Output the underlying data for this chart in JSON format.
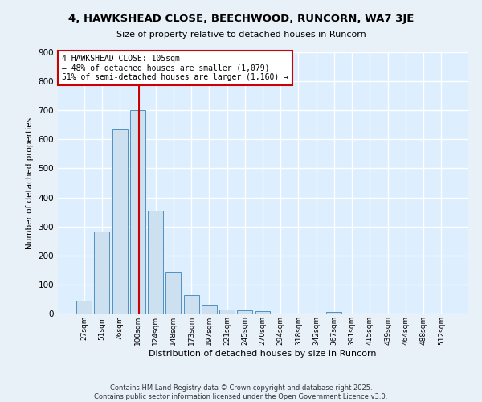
{
  "title": "4, HAWKSHEAD CLOSE, BEECHWOOD, RUNCORN, WA7 3JE",
  "subtitle": "Size of property relative to detached houses in Runcorn",
  "xlabel": "Distribution of detached houses by size in Runcorn",
  "ylabel": "Number of detached properties",
  "bar_color": "#cce0f0",
  "bar_edge_color": "#5090c0",
  "background_color": "#ddeeff",
  "fig_background_color": "#e8f0f8",
  "grid_color": "#ffffff",
  "categories": [
    "27sqm",
    "51sqm",
    "76sqm",
    "100sqm",
    "124sqm",
    "148sqm",
    "173sqm",
    "197sqm",
    "221sqm",
    "245sqm",
    "270sqm",
    "294sqm",
    "318sqm",
    "342sqm",
    "367sqm",
    "391sqm",
    "415sqm",
    "439sqm",
    "464sqm",
    "488sqm",
    "512sqm"
  ],
  "values": [
    43,
    283,
    635,
    700,
    355,
    145,
    65,
    30,
    15,
    11,
    7,
    0,
    0,
    0,
    5,
    0,
    0,
    0,
    0,
    0,
    0
  ],
  "vline_color": "#cc0000",
  "vline_x": 3.08,
  "annotation_text": "4 HAWKSHEAD CLOSE: 105sqm\n← 48% of detached houses are smaller (1,079)\n51% of semi-detached houses are larger (1,160) →",
  "annotation_box_color": "#ffffff",
  "annotation_box_edge": "#cc0000",
  "ylim": [
    0,
    900
  ],
  "yticks": [
    0,
    100,
    200,
    300,
    400,
    500,
    600,
    700,
    800,
    900
  ],
  "footer_line1": "Contains HM Land Registry data © Crown copyright and database right 2025.",
  "footer_line2": "Contains public sector information licensed under the Open Government Licence v3.0."
}
